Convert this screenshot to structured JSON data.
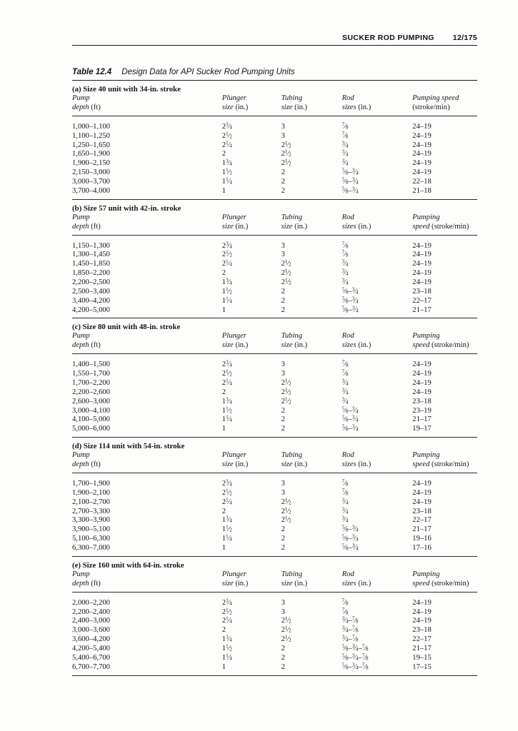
{
  "page_header": {
    "title": "SUCKER ROD PUMPING",
    "page_number": "12/175"
  },
  "table": {
    "label": "Table 12.4",
    "caption": "Design Data for API Sucker Rod Pumping Units",
    "sections": [
      {
        "heading": "(a) Size 40 unit with 34-in. stroke",
        "columns": [
          {
            "line1": "Pump",
            "line2_italic": "depth",
            "line2_roman": "(ft)"
          },
          {
            "line1": "Plunger",
            "line2_italic": "size",
            "line2_roman": "(in.)"
          },
          {
            "line1": "Tubing",
            "line2_italic": "size",
            "line2_roman": "(in.)"
          },
          {
            "line1": "Rod",
            "line2_italic": "sizes",
            "line2_roman": "(in.)"
          },
          {
            "line1": "Pumping speed",
            "line2_italic": "",
            "line2_roman": "(stroke/min)"
          }
        ],
        "rows": [
          [
            "1,000–1,100",
            "2 3/4",
            "3",
            "7/8",
            "24–19"
          ],
          [
            "1,100–1,250",
            "2 1/2",
            "3",
            "7/8",
            "24–19"
          ],
          [
            "1,250–1,650",
            "2 1/4",
            "2 1/2",
            "3/4",
            "24–19"
          ],
          [
            "1,650–1,900",
            "2",
            "2 1/2",
            "3/4",
            "24–19"
          ],
          [
            "1,900–2,150",
            "1 3/4",
            "2 1/2",
            "3/4",
            "24–19"
          ],
          [
            "2,150–3,000",
            "1 1/2",
            "2",
            "5/8–3/4",
            "24–19"
          ],
          [
            "3,000–3,700",
            "1 1/4",
            "2",
            "5/8–3/4",
            "22–18"
          ],
          [
            "3,700–4,000",
            "1",
            "2",
            "5/8–3/4",
            "21–18"
          ]
        ]
      },
      {
        "heading": "(b) Size 57 unit with 42-in. stroke",
        "columns": [
          {
            "line1": "Pump",
            "line2_italic": "depth",
            "line2_roman": "(ft)"
          },
          {
            "line1": "Plunger",
            "line2_italic": "size",
            "line2_roman": "(in.)"
          },
          {
            "line1": "Tubing",
            "line2_italic": "size",
            "line2_roman": "(in.)"
          },
          {
            "line1": "Rod",
            "line2_italic": "sizes",
            "line2_roman": "(in.)"
          },
          {
            "line1": "Pumping",
            "line2_italic": "speed",
            "line2_roman": "(stroke/min)"
          }
        ],
        "rows": [
          [
            "1,150–1,300",
            "2 3/4",
            "3",
            "7/8",
            "24–19"
          ],
          [
            "1,300–1,450",
            "2 1/2",
            "3",
            "7/8",
            "24–19"
          ],
          [
            "1,450–1,850",
            "2 1/4",
            "2 1/2",
            "3/4",
            "24–19"
          ],
          [
            "1,850–2,200",
            "2",
            "2 1/2",
            "3/4",
            "24–19"
          ],
          [
            "2,200–2,500",
            "1 3/4",
            "2 1/2",
            "3/4",
            "24–19"
          ],
          [
            "2,500–3,400",
            "1 1/2",
            "2",
            "5/8–3/4",
            "23–18"
          ],
          [
            "3,400–4,200",
            "1 1/4",
            "2",
            "5/8–3/4",
            "22–17"
          ],
          [
            "4,200–5,000",
            "1",
            "2",
            "5/8–3/4",
            "21–17"
          ]
        ]
      },
      {
        "heading": "(c) Size 80 unit with 48-in. stroke",
        "columns": [
          {
            "line1": "Pump",
            "line2_italic": "depth",
            "line2_roman": "(ft)"
          },
          {
            "line1": "Plunger",
            "line2_italic": "size",
            "line2_roman": "(in.)"
          },
          {
            "line1": "Tubing",
            "line2_italic": "size",
            "line2_roman": "(in.)"
          },
          {
            "line1": "Rod",
            "line2_italic": "sizes",
            "line2_roman": "(in.)"
          },
          {
            "line1": "Pumping",
            "line2_italic": "speed",
            "line2_roman": "(stroke/min)"
          }
        ],
        "rows": [
          [
            "1,400–1,500",
            "2 3/4",
            "3",
            "7/8",
            "24–19"
          ],
          [
            "1,550–1,700",
            "2 1/2",
            "3",
            "7/8",
            "24–19"
          ],
          [
            "1,700–2,200",
            "2 1/4",
            "2 1/2",
            "3/4",
            "24–19"
          ],
          [
            "2,200–2,600",
            "2",
            "2 1/2",
            "3/4",
            "24–19"
          ],
          [
            "2,600–3,000",
            "1 3/4",
            "2 1/2",
            "3/4",
            "23–18"
          ],
          [
            "3,000–4,100",
            "1 1/2",
            "2",
            "5/8–3/4",
            "23–19"
          ],
          [
            "4,100–5,000",
            "1 1/4",
            "2",
            "5/8–3/4",
            "21–17"
          ],
          [
            "5,000–6,000",
            "1",
            "2",
            "5/8–3/4",
            "19–17"
          ]
        ]
      },
      {
        "heading": "(d) Size 114 unit with 54-in. stroke",
        "columns": [
          {
            "line1": "Pump",
            "line2_italic": "depth",
            "line2_roman": "(ft)"
          },
          {
            "line1": "Plunger",
            "line2_italic": "size",
            "line2_roman": "(in.)"
          },
          {
            "line1": "Tubing",
            "line2_italic": "size",
            "line2_roman": "(in.)"
          },
          {
            "line1": "Rod",
            "line2_italic": "sizes",
            "line2_roman": "(in.)"
          },
          {
            "line1": "Pumping",
            "line2_italic": "speed",
            "line2_roman": "(stroke/min)"
          }
        ],
        "rows": [
          [
            "1,700–1,900",
            "2 3/4",
            "3",
            "7/8",
            "24–19"
          ],
          [
            "1,900–2,100",
            "2 1/2",
            "3",
            "7/8",
            "24–19"
          ],
          [
            "2,100–2,700",
            "2 1/4",
            "2 1/2",
            "3/4",
            "24–19"
          ],
          [
            "2,700–3,300",
            "2",
            "2 1/2",
            "3/4",
            "23–18"
          ],
          [
            "3,300–3,900",
            "1 3/4",
            "2 1/2",
            "3/4",
            "22–17"
          ],
          [
            "3,900–5,100",
            "1 1/2",
            "2",
            "5/8–3/4",
            "21–17"
          ],
          [
            "5,100–6,300",
            "1 1/4",
            "2",
            "5/8–3/4",
            "19–16"
          ],
          [
            "6,300–7,000",
            "1",
            "2",
            "5/8–3/4",
            "17–16"
          ]
        ]
      },
      {
        "heading": "(e) Size 160 unit with 64-in. stroke",
        "columns": [
          {
            "line1": "Pump",
            "line2_italic": "depth",
            "line2_roman": "(ft)"
          },
          {
            "line1": "Plunger",
            "line2_italic": "size",
            "line2_roman": "(in.)"
          },
          {
            "line1": "Tubing",
            "line2_italic": "size",
            "line2_roman": "(in.)"
          },
          {
            "line1": "Rod",
            "line2_italic": "sizes",
            "line2_roman": "(in.)"
          },
          {
            "line1": "Pumping",
            "line2_italic": "speed",
            "line2_roman": "(stroke/min)"
          }
        ],
        "rows": [
          [
            "2,000–2,200",
            "2 3/4",
            "3",
            "7/8",
            "24–19"
          ],
          [
            "2,200–2,400",
            "2 1/2",
            "3",
            "7/8",
            "24–19"
          ],
          [
            "2,400–3,000",
            "2 1/4",
            "2 1/2",
            "3/4–7/8",
            "24–19"
          ],
          [
            "3,000–3,600",
            "2",
            "2 1/2",
            "3/4–7/8",
            "23–18"
          ],
          [
            "3,600–4,200",
            "1 3/4",
            "2 1/2",
            "3/4–7/8",
            "22–17"
          ],
          [
            "4,200–5,400",
            "1 1/2",
            "2",
            "5/8–3/4–7/8",
            "21–17"
          ],
          [
            "5,400–6,700",
            "1 1/4",
            "2",
            "5/8–3/4–7/8",
            "19–15"
          ],
          [
            "6,700–7,700",
            "1",
            "2",
            "5/8–3/4–7/8",
            "17–15"
          ]
        ]
      }
    ]
  }
}
